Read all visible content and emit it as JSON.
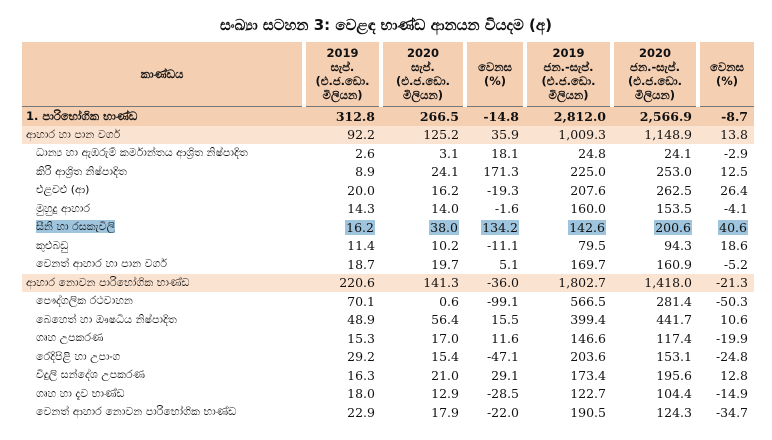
{
  "title": "සංඛ්‍යා සටහන 3: වෙළඳ භාණ්ඩ ආනයන වියදම (අ)",
  "headers": {
    "category": "කාණ්ඩය",
    "col1": [
      "2019",
      "සැප්.",
      "(එ.ජ.ඩො.",
      "මිලියන)"
    ],
    "col2": [
      "2020",
      "සැප්.",
      "(එ.ජ.ඩො.",
      "මිලියන)"
    ],
    "col3": [
      "වෙනස",
      "(%)"
    ],
    "col4": [
      "2019",
      "ජන.-සැප්.",
      "(එ.ජ.ඩො.",
      "මිලියන)"
    ],
    "col5": [
      "2020",
      "ජන.-සැප්.",
      "(එ.ජ.ඩො.",
      "මිලියන)"
    ],
    "col6": [
      "වෙනස",
      "(%)"
    ]
  },
  "rows": [
    {
      "label": "1.  පාරිභෝගික භාණ්ඩ",
      "values": [
        "312.8",
        "266.5",
        "-14.8",
        "2,812.0",
        "2,566.9",
        "-8.7"
      ],
      "kind": "top",
      "highlight": false
    },
    {
      "label": "ආහාර හා පාන වර්ග",
      "values": [
        "92.2",
        "125.2",
        "35.9",
        "1,009.3",
        "1,148.9",
        "13.8"
      ],
      "kind": "group",
      "highlight": false
    },
    {
      "label": "ධාන්‍ය හා ඇඹරුම් කර්මාන්තය ආශ්‍රිත නිෂ්පාදිත",
      "values": [
        "2.6",
        "3.1",
        "18.1",
        "24.8",
        "24.1",
        "-2.9"
      ],
      "kind": "sub",
      "highlight": false
    },
    {
      "label": "කිරි ආශ්‍රිත නිෂ්පාදිත",
      "values": [
        "8.9",
        "24.1",
        "171.3",
        "225.0",
        "253.0",
        "12.5"
      ],
      "kind": "sub",
      "highlight": false
    },
    {
      "label": "එළවළු (ආ)",
      "values": [
        "20.0",
        "16.2",
        "-19.3",
        "207.6",
        "262.5",
        "26.4"
      ],
      "kind": "sub",
      "highlight": false
    },
    {
      "label": "මුහුදු ආහාර",
      "values": [
        "14.3",
        "14.0",
        "-1.6",
        "160.0",
        "153.5",
        "-4.1"
      ],
      "kind": "sub",
      "highlight": false
    },
    {
      "label": "සීනි හා රසකැවිලි",
      "values": [
        "16.2",
        "38.0",
        "134.2",
        "142.6",
        "200.6",
        "40.6"
      ],
      "kind": "sub",
      "highlight": true
    },
    {
      "label": "කුළුබඩු",
      "values": [
        "11.4",
        "10.2",
        "-11.1",
        "79.5",
        "94.3",
        "18.6"
      ],
      "kind": "sub",
      "highlight": false
    },
    {
      "label": "වෙනත් ආහාර හා පාන වර්ග",
      "values": [
        "18.7",
        "19.7",
        "5.1",
        "169.7",
        "160.9",
        "-5.2"
      ],
      "kind": "sub",
      "highlight": false
    },
    {
      "label": "ආහාර නොවන පාරිභෝගික භාණ්ඩ",
      "values": [
        "220.6",
        "141.3",
        "-36.0",
        "1,802.7",
        "1,418.0",
        "-21.3"
      ],
      "kind": "group",
      "highlight": false
    },
    {
      "label": "පෞද්ගලික රථවාහන",
      "values": [
        "70.1",
        "0.6",
        "-99.1",
        "566.5",
        "281.4",
        "-50.3"
      ],
      "kind": "sub",
      "highlight": false
    },
    {
      "label": "බෙහෙත් හා ඖෂධීය නිෂ්පාදිත",
      "values": [
        "48.9",
        "56.4",
        "15.5",
        "399.4",
        "441.7",
        "10.6"
      ],
      "kind": "sub",
      "highlight": false
    },
    {
      "label": "ගෘහ උපකරණ",
      "values": [
        "15.3",
        "17.0",
        "11.6",
        "146.6",
        "117.4",
        "-19.9"
      ],
      "kind": "sub",
      "highlight": false
    },
    {
      "label": "රෙදිපිළි හා උපාංග",
      "values": [
        "29.2",
        "15.4",
        "-47.1",
        "203.6",
        "153.1",
        "-24.8"
      ],
      "kind": "sub",
      "highlight": false
    },
    {
      "label": "විදුලි සන්දේශ උපකරණ",
      "values": [
        "16.3",
        "21.0",
        "29.1",
        "173.4",
        "195.6",
        "12.8"
      ],
      "kind": "sub",
      "highlight": false
    },
    {
      "label": "ගෘහ හා දැව භාණ්ඩ",
      "values": [
        "18.0",
        "12.9",
        "-28.5",
        "122.7",
        "104.4",
        "-14.9"
      ],
      "kind": "sub",
      "highlight": false
    },
    {
      "label": "වෙනත් ආහාර නොවන පාරිභෝගික භාණ්ඩ",
      "values": [
        "22.9",
        "17.9",
        "-22.0",
        "190.5",
        "124.3",
        "-34.7"
      ],
      "kind": "sub",
      "highlight": false
    }
  ]
}
